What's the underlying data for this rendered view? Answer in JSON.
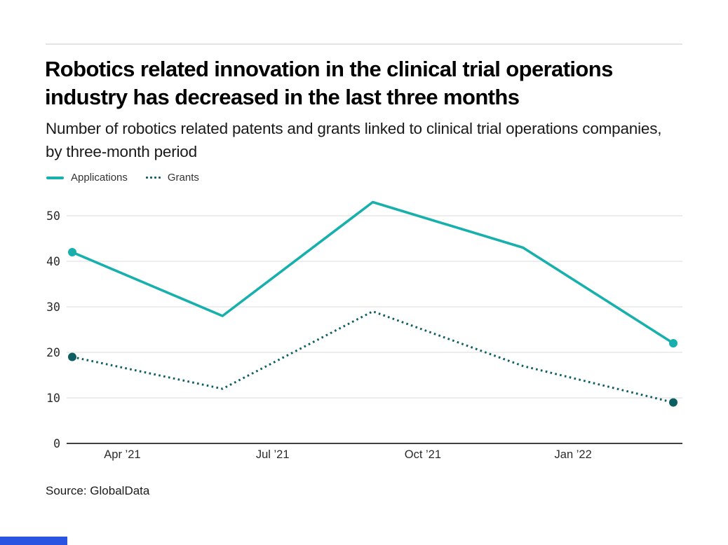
{
  "header": {
    "title": "Robotics related innovation in the clinical trial operations industry has decreased in the last three months",
    "subtitle": "Number of robotics related patents and grants linked to clinical trial operations companies, by three-month period"
  },
  "legend": {
    "items": [
      {
        "label": "Applications",
        "swatch": "solid-line",
        "color": "#17b0ac"
      },
      {
        "label": "Grants",
        "swatch": "dotted-line",
        "color": "#0e5f63"
      }
    ]
  },
  "chart_data": {
    "type": "line",
    "title": "Robotics related innovation in the clinical trial operations industry has decreased in the last three months",
    "subtitle": "Number of robotics related patents and grants linked to clinical trial operations companies, by three-month period",
    "x_tick_labels": [
      "Apr ’21",
      "Jul ’21",
      "Oct ’21",
      "Jan ’22"
    ],
    "series": [
      {
        "name": "Applications",
        "values": [
          42,
          28,
          53,
          43,
          22
        ],
        "color": "#17b0ac",
        "style": "solid",
        "markers": "endpoints"
      },
      {
        "name": "Grants",
        "values": [
          19,
          12,
          29,
          17,
          9
        ],
        "color": "#0e5f63",
        "style": "dotted",
        "markers": "endpoints"
      }
    ],
    "yticks": [
      0,
      10,
      20,
      30,
      40,
      50
    ],
    "ylim": [
      0,
      55
    ],
    "grid": true,
    "legend_position": "top-left",
    "grid_color": "#e7e7e7",
    "axis_color": "#404040",
    "tick_label_color": "#2b2b2b"
  },
  "footer": {
    "source": "Source: GlobalData",
    "brand_bar_color": "#2953e1"
  }
}
